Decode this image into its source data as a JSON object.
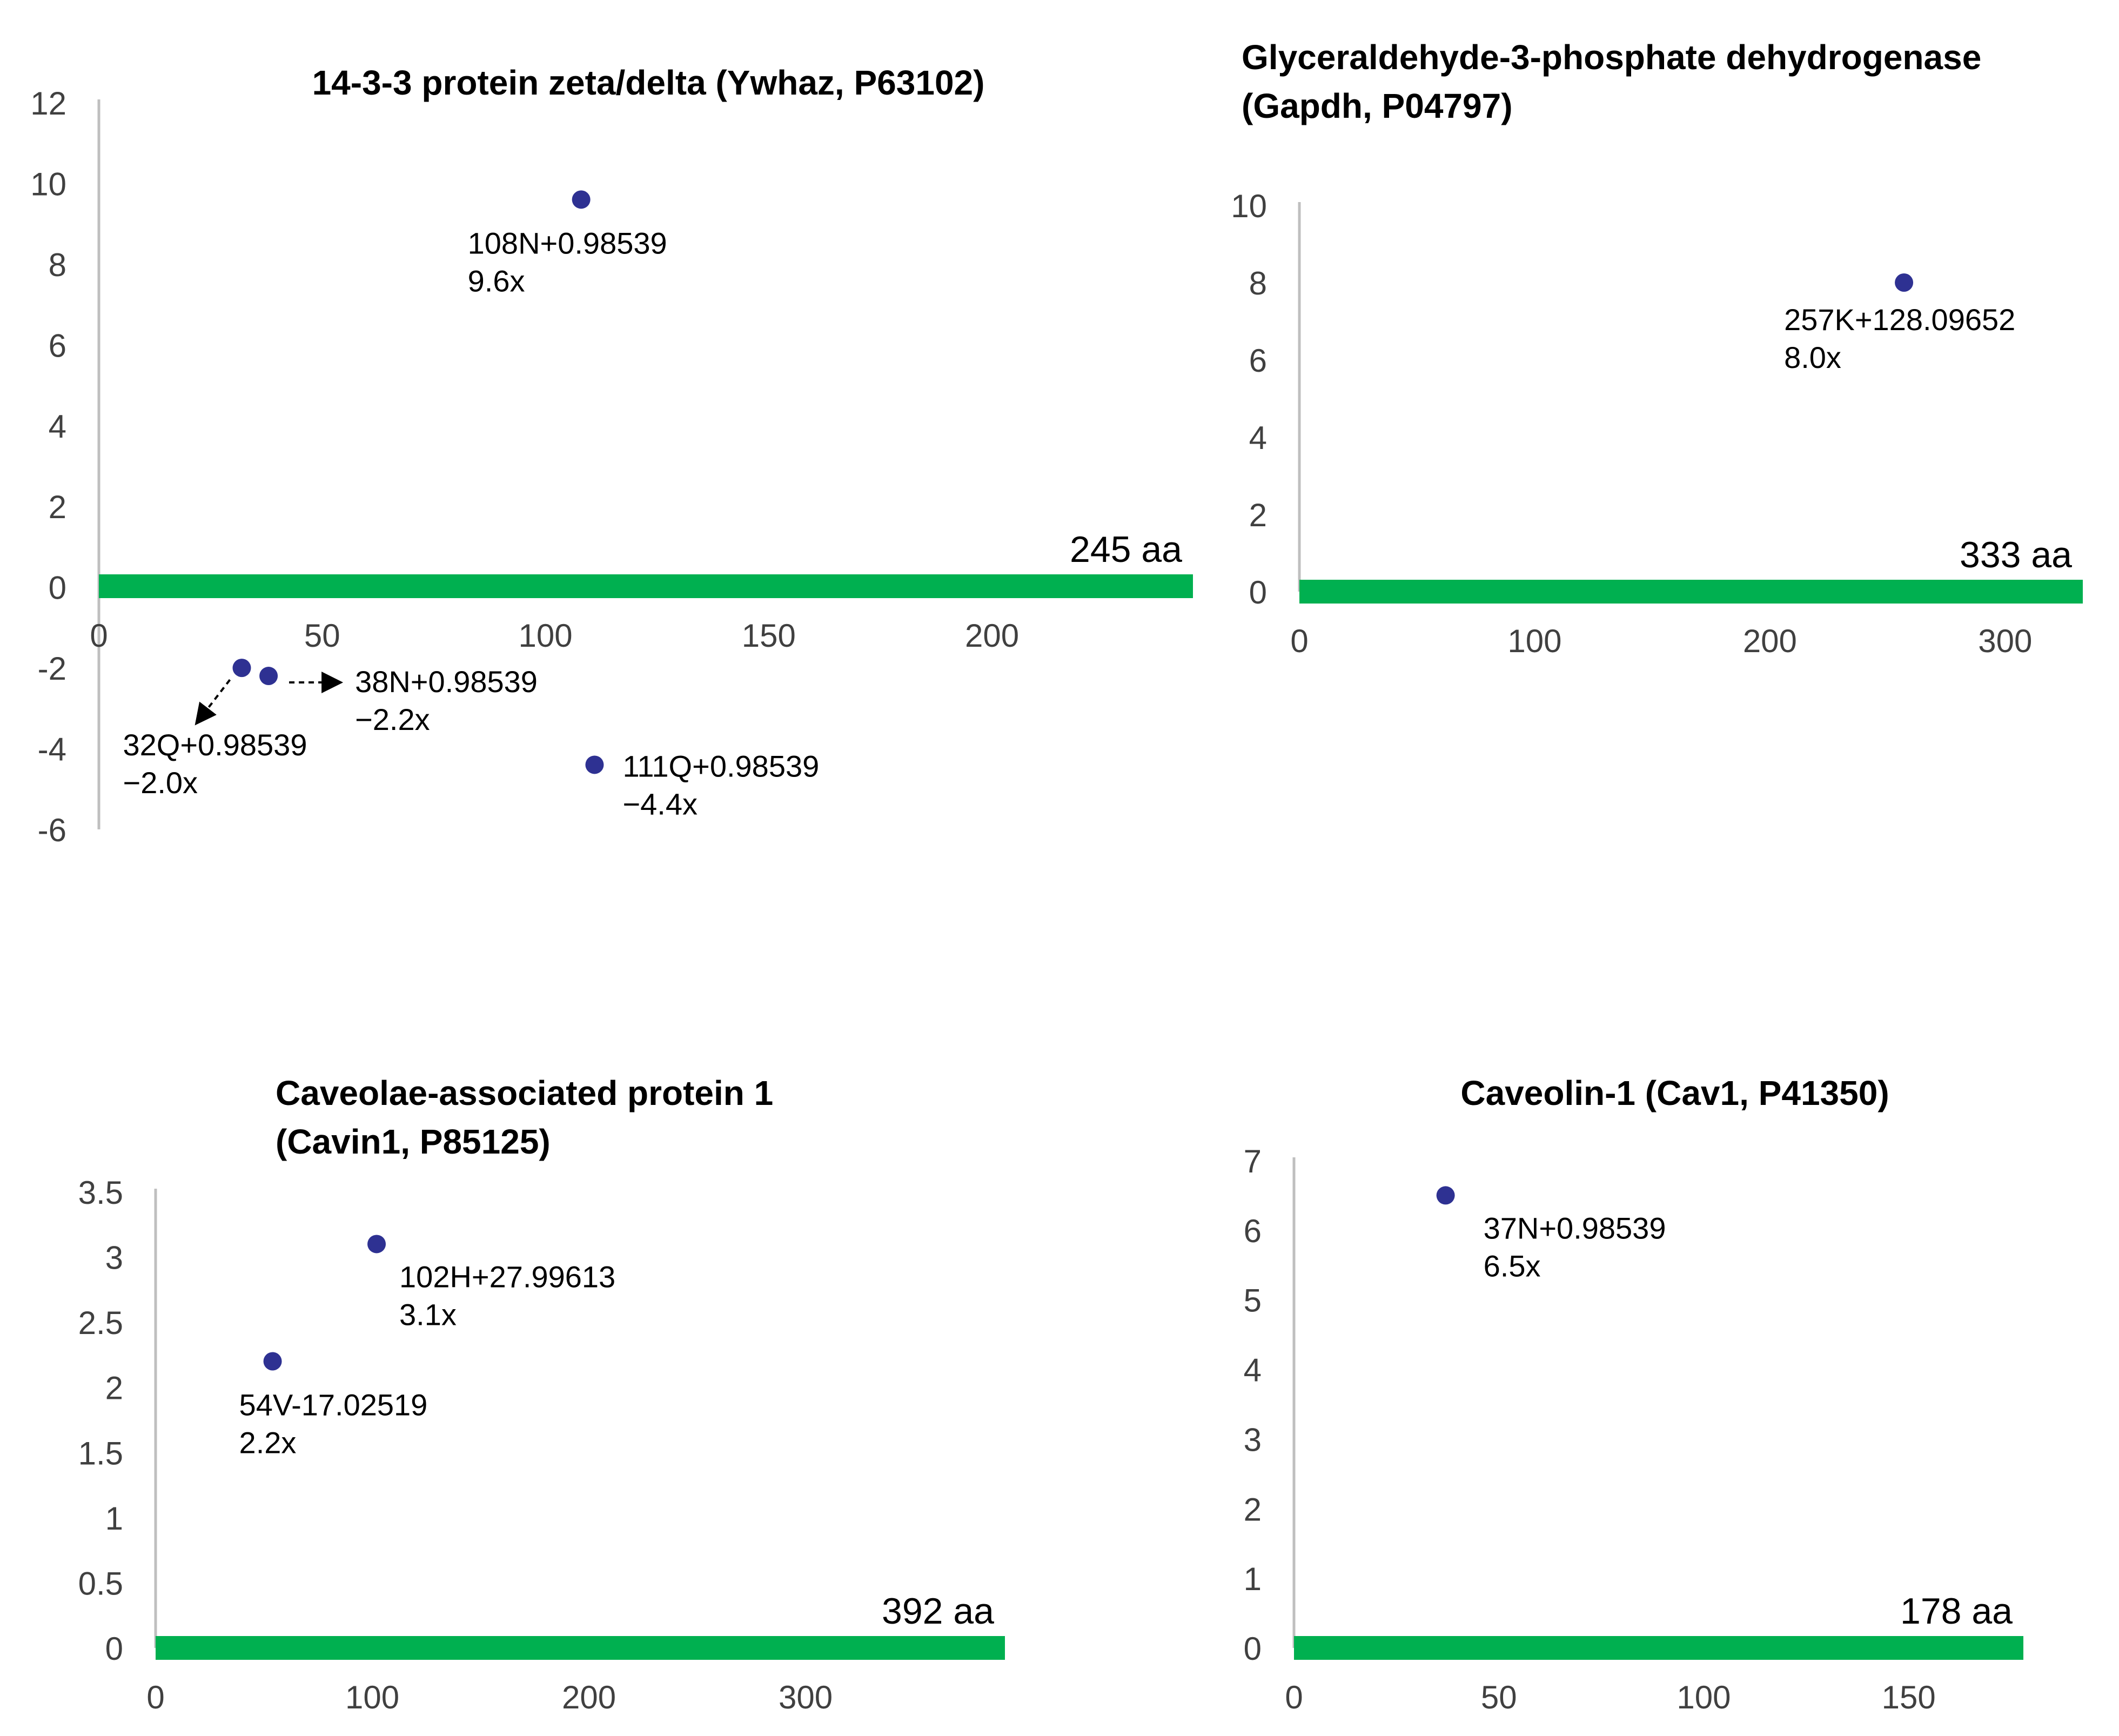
{
  "colors": {
    "bar": "#00b050",
    "point": "#2e3192",
    "axis": "#bfbfbf",
    "text": "#000000",
    "tick": "#404040"
  },
  "chart_data": [
    {
      "type": "scatter",
      "title": "14-3-3 protein zeta/delta (Ywhaz, P63102)",
      "title_lines": [
        "14-3-3 protein zeta/delta (Ywhaz, P63102)"
      ],
      "xlim": [
        0,
        245
      ],
      "ylim": [
        -6,
        12
      ],
      "xticks": [
        0,
        50,
        100,
        150,
        200
      ],
      "yticks": [
        -6,
        -4,
        -2,
        0,
        2,
        4,
        6,
        8,
        10,
        12
      ],
      "x_tick_labels": [
        "0",
        "50",
        "100",
        "150",
        "200"
      ],
      "y_tick_labels": [
        "-6",
        "-4",
        "-2",
        "0",
        "2",
        "4",
        "6",
        "8",
        "10",
        "12"
      ],
      "length": 245,
      "length_label": "245 aa",
      "points": [
        {
          "x": 108,
          "y": 9.6,
          "label": "108N+0.98539",
          "fold": "9.6x"
        },
        {
          "x": 32,
          "y": -2.0,
          "label": "32Q+0.98539",
          "fold": "−2.0x"
        },
        {
          "x": 38,
          "y": -2.2,
          "label": "38N+0.98539",
          "fold": "−2.2x"
        },
        {
          "x": 111,
          "y": -4.4,
          "label": "111Q+0.98539",
          "fold": "−4.4x"
        }
      ]
    },
    {
      "type": "scatter",
      "title": "Glyceraldehyde-3-phosphate dehydrogenase (Gapdh, P04797)",
      "title_lines": [
        "Glyceraldehyde-3-phosphate dehydrogenase",
        "(Gapdh, P04797)"
      ],
      "xlim": [
        0,
        333
      ],
      "ylim": [
        0,
        10
      ],
      "xticks": [
        0,
        100,
        200,
        300
      ],
      "yticks": [
        0,
        2,
        4,
        6,
        8,
        10
      ],
      "x_tick_labels": [
        "0",
        "100",
        "200",
        "300"
      ],
      "y_tick_labels": [
        "0",
        "2",
        "4",
        "6",
        "8",
        "10"
      ],
      "length": 333,
      "length_label": "333 aa",
      "points": [
        {
          "x": 257,
          "y": 8.0,
          "label": "257K+128.09652",
          "fold": "8.0x"
        }
      ]
    },
    {
      "type": "scatter",
      "title": "Caveolae-associated protein 1 (Cavin1, P85125)",
      "title_lines": [
        "Caveolae-associated protein 1",
        "(Cavin1, P85125)"
      ],
      "xlim": [
        0,
        392
      ],
      "ylim": [
        0,
        3.5
      ],
      "xticks": [
        0,
        100,
        200,
        300
      ],
      "yticks": [
        0,
        0.5,
        1,
        1.5,
        2,
        2.5,
        3,
        3.5
      ],
      "x_tick_labels": [
        "0",
        "100",
        "200",
        "300"
      ],
      "y_tick_labels": [
        "0",
        "0.5",
        "1",
        "1.5",
        "2",
        "2.5",
        "3",
        "3.5"
      ],
      "length": 392,
      "length_label": "392 aa",
      "points": [
        {
          "x": 102,
          "y": 3.1,
          "label": "102H+27.99613",
          "fold": "3.1x"
        },
        {
          "x": 54,
          "y": 2.2,
          "label": "54V-17.02519",
          "fold": "2.2x"
        }
      ]
    },
    {
      "type": "scatter",
      "title": "Caveolin-1 (Cav1, P41350)",
      "title_lines": [
        "Caveolin-1 (Cav1, P41350)"
      ],
      "xlim": [
        0,
        178
      ],
      "ylim": [
        0,
        7
      ],
      "xticks": [
        0,
        50,
        100,
        150
      ],
      "yticks": [
        0,
        1,
        2,
        3,
        4,
        5,
        6,
        7
      ],
      "x_tick_labels": [
        "0",
        "50",
        "100",
        "150"
      ],
      "y_tick_labels": [
        "0",
        "1",
        "2",
        "3",
        "4",
        "5",
        "6",
        "7"
      ],
      "length": 178,
      "length_label": "178 aa",
      "points": [
        {
          "x": 37,
          "y": 6.5,
          "label": "37N+0.98539",
          "fold": "6.5x"
        }
      ]
    }
  ]
}
